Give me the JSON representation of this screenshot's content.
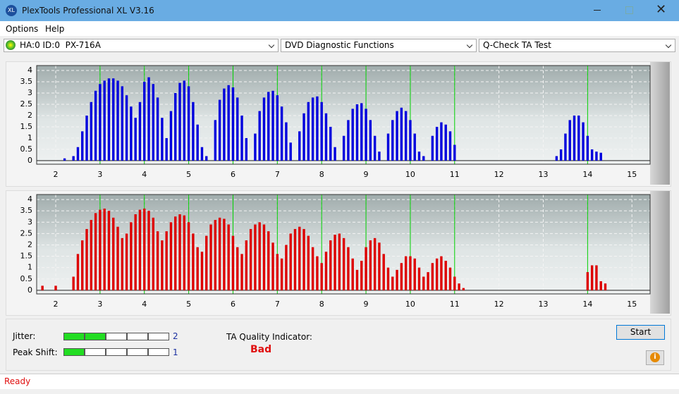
{
  "window": {
    "title": "PlexTools Professional XL V3.16"
  },
  "menu": [
    "Options",
    "Help"
  ],
  "toolbar": {
    "drive": "HA:0 ID:0  PX-716A",
    "function": "DVD Diagnostic Functions",
    "test": "Q-Check TA Test"
  },
  "chart_data": [
    {
      "type": "bar",
      "color": "#0000dd",
      "marker_color": "#00d000",
      "grid": true,
      "xlim": [
        1.57,
        15.41
      ],
      "ylim": [
        -0.16,
        4.22
      ],
      "xticks": [
        2,
        3,
        4,
        5,
        6,
        7,
        8,
        9,
        10,
        11,
        12,
        13,
        14,
        15
      ],
      "yticks": [
        0,
        0.5,
        1,
        1.5,
        2,
        2.5,
        3,
        3.5,
        4
      ],
      "markers": [
        3,
        4,
        5,
        6,
        7,
        8,
        9,
        10,
        11,
        14
      ],
      "x": [
        2.2,
        2.4,
        2.5,
        2.6,
        2.7,
        2.8,
        2.9,
        3.0,
        3.1,
        3.2,
        3.3,
        3.4,
        3.5,
        3.6,
        3.7,
        3.8,
        3.9,
        4.0,
        4.1,
        4.2,
        4.3,
        4.4,
        4.5,
        4.6,
        4.7,
        4.8,
        4.9,
        5.0,
        5.1,
        5.2,
        5.3,
        5.4,
        5.5,
        5.6,
        5.7,
        5.8,
        5.9,
        6.0,
        6.1,
        6.2,
        6.3,
        6.4,
        6.5,
        6.6,
        6.7,
        6.8,
        6.9,
        7.0,
        7.1,
        7.2,
        7.3,
        7.4,
        7.5,
        7.6,
        7.7,
        7.8,
        7.9,
        8.0,
        8.1,
        8.2,
        8.3,
        8.4,
        8.5,
        8.6,
        8.7,
        8.8,
        8.9,
        9.0,
        9.1,
        9.2,
        9.3,
        9.4,
        9.5,
        9.6,
        9.7,
        9.8,
        9.9,
        10.0,
        10.1,
        10.2,
        10.3,
        10.4,
        10.5,
        10.6,
        10.7,
        10.8,
        10.9,
        11.0,
        13.3,
        13.4,
        13.5,
        13.6,
        13.7,
        13.8,
        13.9,
        14.0,
        14.1,
        14.2,
        14.3
      ],
      "values": [
        0.1,
        0.2,
        0.6,
        1.3,
        2.0,
        2.6,
        3.1,
        3.4,
        3.55,
        3.65,
        3.65,
        3.55,
        3.3,
        2.9,
        2.4,
        1.9,
        2.6,
        3.5,
        3.7,
        3.4,
        2.8,
        1.9,
        1.0,
        2.2,
        3.0,
        3.45,
        3.55,
        3.3,
        2.6,
        1.6,
        0.6,
        0.2,
        0,
        1.8,
        2.7,
        3.2,
        3.35,
        3.25,
        2.8,
        2.0,
        1.0,
        0,
        1.2,
        2.2,
        2.8,
        3.05,
        3.1,
        2.9,
        2.4,
        1.7,
        0.8,
        0,
        1.3,
        2.1,
        2.6,
        2.8,
        2.85,
        2.6,
        2.1,
        1.5,
        0.6,
        0,
        1.1,
        1.8,
        2.3,
        2.5,
        2.55,
        2.3,
        1.8,
        1.1,
        0.4,
        0,
        1.2,
        1.8,
        2.2,
        2.35,
        2.2,
        1.8,
        1.2,
        0.4,
        0.2,
        0,
        1.1,
        1.5,
        1.7,
        1.6,
        1.3,
        0.7,
        0.2,
        0.5,
        1.2,
        1.8,
        2.0,
        2.0,
        1.7,
        1.1,
        0.5,
        0.4,
        0.35
      ]
    },
    {
      "type": "bar",
      "color": "#dd0000",
      "marker_color": "#00d000",
      "grid": true,
      "xlim": [
        1.57,
        15.41
      ],
      "ylim": [
        -0.16,
        4.22
      ],
      "xticks": [
        2,
        3,
        4,
        5,
        6,
        7,
        8,
        9,
        10,
        11,
        12,
        13,
        14,
        15
      ],
      "yticks": [
        0,
        0.5,
        1,
        1.5,
        2,
        2.5,
        3,
        3.5,
        4
      ],
      "markers": [
        3,
        4,
        5,
        6,
        7,
        8,
        9,
        10,
        11,
        14
      ],
      "x": [
        1.7,
        2.0,
        2.4,
        2.5,
        2.6,
        2.7,
        2.8,
        2.9,
        3.0,
        3.1,
        3.2,
        3.3,
        3.4,
        3.5,
        3.6,
        3.7,
        3.8,
        3.9,
        4.0,
        4.1,
        4.2,
        4.3,
        4.4,
        4.5,
        4.6,
        4.7,
        4.8,
        4.9,
        5.0,
        5.1,
        5.2,
        5.3,
        5.4,
        5.5,
        5.6,
        5.7,
        5.8,
        5.9,
        6.0,
        6.1,
        6.2,
        6.3,
        6.4,
        6.5,
        6.6,
        6.7,
        6.8,
        6.9,
        7.0,
        7.1,
        7.2,
        7.3,
        7.4,
        7.5,
        7.6,
        7.7,
        7.8,
        7.9,
        8.0,
        8.1,
        8.2,
        8.3,
        8.4,
        8.5,
        8.6,
        8.7,
        8.8,
        8.9,
        9.0,
        9.1,
        9.2,
        9.3,
        9.4,
        9.5,
        9.6,
        9.7,
        9.8,
        9.9,
        10.0,
        10.1,
        10.2,
        10.3,
        10.4,
        10.5,
        10.6,
        10.7,
        10.8,
        10.9,
        11.0,
        11.1,
        11.2,
        14.0,
        14.1,
        14.2,
        14.3,
        14.4
      ],
      "values": [
        0.2,
        0.2,
        0.6,
        1.6,
        2.2,
        2.7,
        3.1,
        3.4,
        3.55,
        3.6,
        3.5,
        3.2,
        2.8,
        2.3,
        2.5,
        3.0,
        3.35,
        3.55,
        3.6,
        3.5,
        3.2,
        2.6,
        2.2,
        2.6,
        3.0,
        3.25,
        3.35,
        3.3,
        3.0,
        2.5,
        1.9,
        1.7,
        2.4,
        2.9,
        3.1,
        3.2,
        3.15,
        2.9,
        2.4,
        1.9,
        1.6,
        2.2,
        2.7,
        2.9,
        3.0,
        2.9,
        2.6,
        2.1,
        1.6,
        1.4,
        2.0,
        2.5,
        2.7,
        2.8,
        2.7,
        2.4,
        1.9,
        1.5,
        1.2,
        1.7,
        2.2,
        2.45,
        2.5,
        2.3,
        1.9,
        1.4,
        0.9,
        1.3,
        1.9,
        2.2,
        2.3,
        2.1,
        1.6,
        1.0,
        0.6,
        0.9,
        1.2,
        1.5,
        1.5,
        1.4,
        1.0,
        0.6,
        0.8,
        1.2,
        1.4,
        1.5,
        1.3,
        1.0,
        0.6,
        0.3,
        0.1,
        0.8,
        1.1,
        1.1,
        0.4,
        0.3
      ]
    }
  ],
  "results": {
    "jitter": {
      "label": "Jitter:",
      "value": 2,
      "segments": 5
    },
    "peak_shift": {
      "label": "Peak Shift:",
      "value": 1,
      "segments": 5
    },
    "quality_label": "TA Quality Indicator:",
    "quality": "Bad"
  },
  "buttons": {
    "start": "Start"
  },
  "status": "Ready"
}
